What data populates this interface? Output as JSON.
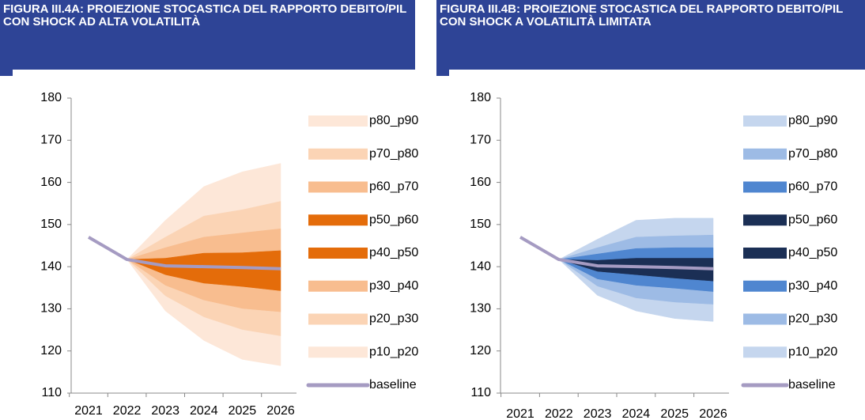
{
  "chart_data": [
    {
      "type": "fan",
      "title": "FIGURA III.4A: PROIEZIONE STOCASTICA DEL RAPPORTO DEBITO/PIL CON SHOCK AD ALTA VOLATILITÀ",
      "categories": [
        "2021",
        "2022",
        "2023",
        "2024",
        "2025",
        "2026"
      ],
      "ylim": [
        110,
        180
      ],
      "yticks": [
        110,
        120,
        130,
        140,
        150,
        160,
        170,
        180
      ],
      "series": [
        {
          "name": "p80_p90",
          "color": "#fde7d8",
          "lower": [
            null,
            141.7,
            147,
            152,
            153.5,
            155.5
          ],
          "upper": [
            null,
            141.7,
            151,
            159,
            162.5,
            164.5
          ]
        },
        {
          "name": "p70_p80",
          "color": "#fbd4b5",
          "lower": [
            null,
            141.7,
            144.5,
            147,
            148,
            149
          ],
          "upper": [
            null,
            141.7,
            147,
            152,
            153.5,
            155.5
          ]
        },
        {
          "name": "p60_p70",
          "color": "#f8bd8f",
          "lower": [
            null,
            141.7,
            142,
            143.2,
            143.3,
            143.8
          ],
          "upper": [
            null,
            141.7,
            144.5,
            147,
            148,
            149
          ]
        },
        {
          "name": "p50_p60",
          "color": "#e46c0a",
          "lower": [
            null,
            141.7,
            140.3,
            139.8,
            139.5,
            139.2
          ],
          "upper": [
            null,
            141.7,
            142,
            143.2,
            143.3,
            143.8
          ]
        },
        {
          "name": "p40_p50",
          "color": "#e46c0a",
          "lower": [
            null,
            141.7,
            138,
            136,
            135.2,
            134.2
          ],
          "upper": [
            null,
            141.7,
            140.3,
            139.8,
            139.5,
            139.2
          ]
        },
        {
          "name": "p30_p40",
          "color": "#f8bd8f",
          "lower": [
            null,
            141.7,
            135.5,
            132,
            130,
            129.2
          ],
          "upper": [
            null,
            141.7,
            138,
            136,
            135.2,
            134.2
          ]
        },
        {
          "name": "p20_p30",
          "color": "#fbd4b5",
          "lower": [
            null,
            141.7,
            133,
            128,
            125,
            123.5
          ],
          "upper": [
            null,
            141.7,
            135.5,
            132,
            130,
            129.2
          ]
        },
        {
          "name": "p10_p20",
          "color": "#fde7d8",
          "lower": [
            null,
            141.7,
            129.5,
            122.5,
            118,
            116.5
          ],
          "upper": [
            null,
            141.7,
            133,
            128,
            125,
            123.5
          ]
        },
        {
          "name": "baseline",
          "color": "#a59bc2",
          "values": [
            147,
            141.7,
            140.2,
            140,
            139.8,
            139.5
          ]
        }
      ]
    },
    {
      "type": "fan",
      "title": "FIGURA III.4B: PROIEZIONE STOCASTICA DEL RAPPORTO DEBITO/PIL CON SHOCK A VOLATILITÀ LIMITATA",
      "categories": [
        "2021",
        "2022",
        "2023",
        "2024",
        "2025",
        "2026"
      ],
      "ylim": [
        110,
        180
      ],
      "yticks": [
        110,
        120,
        130,
        140,
        150,
        160,
        170,
        180
      ],
      "series": [
        {
          "name": "p80_p90",
          "color": "#c5d6ee",
          "lower": [
            null,
            141.7,
            144.5,
            147,
            147.3,
            147.5
          ],
          "upper": [
            null,
            141.7,
            146.5,
            151,
            151.5,
            151.5
          ]
        },
        {
          "name": "p70_p80",
          "color": "#9dbbe5",
          "lower": [
            null,
            141.7,
            143,
            144.3,
            144.5,
            144.5
          ],
          "upper": [
            null,
            141.7,
            144.5,
            147,
            147.3,
            147.5
          ]
        },
        {
          "name": "p60_p70",
          "color": "#4f86d0",
          "lower": [
            null,
            141.7,
            141.5,
            142,
            142,
            142
          ],
          "upper": [
            null,
            141.7,
            143,
            144.3,
            144.5,
            144.5
          ]
        },
        {
          "name": "p50_p60",
          "color": "#1b2f55",
          "lower": [
            null,
            141.7,
            140.3,
            140,
            139.7,
            139.5
          ],
          "upper": [
            null,
            141.7,
            141.5,
            142,
            142,
            142
          ]
        },
        {
          "name": "p40_p50",
          "color": "#1b2f55",
          "lower": [
            null,
            141.7,
            138.8,
            138,
            137.2,
            136.5
          ],
          "upper": [
            null,
            141.7,
            140.3,
            140,
            139.7,
            139.5
          ]
        },
        {
          "name": "p30_p40",
          "color": "#4f86d0",
          "lower": [
            null,
            141.7,
            137,
            135.5,
            134.8,
            134
          ],
          "upper": [
            null,
            141.7,
            138.8,
            138,
            137.2,
            136.5
          ]
        },
        {
          "name": "p20_p30",
          "color": "#9dbbe5",
          "lower": [
            null,
            141.7,
            135.3,
            132.5,
            131.5,
            131
          ],
          "upper": [
            null,
            141.7,
            137,
            135.5,
            134.8,
            134
          ]
        },
        {
          "name": "p10_p20",
          "color": "#c5d6ee",
          "lower": [
            null,
            141.7,
            133.2,
            129.5,
            127.7,
            127
          ],
          "upper": [
            null,
            141.7,
            135.3,
            132.5,
            131.5,
            131
          ]
        },
        {
          "name": "baseline",
          "color": "#a59bc2",
          "values": [
            147,
            141.7,
            140.2,
            140,
            139.8,
            139.5
          ]
        }
      ]
    }
  ]
}
